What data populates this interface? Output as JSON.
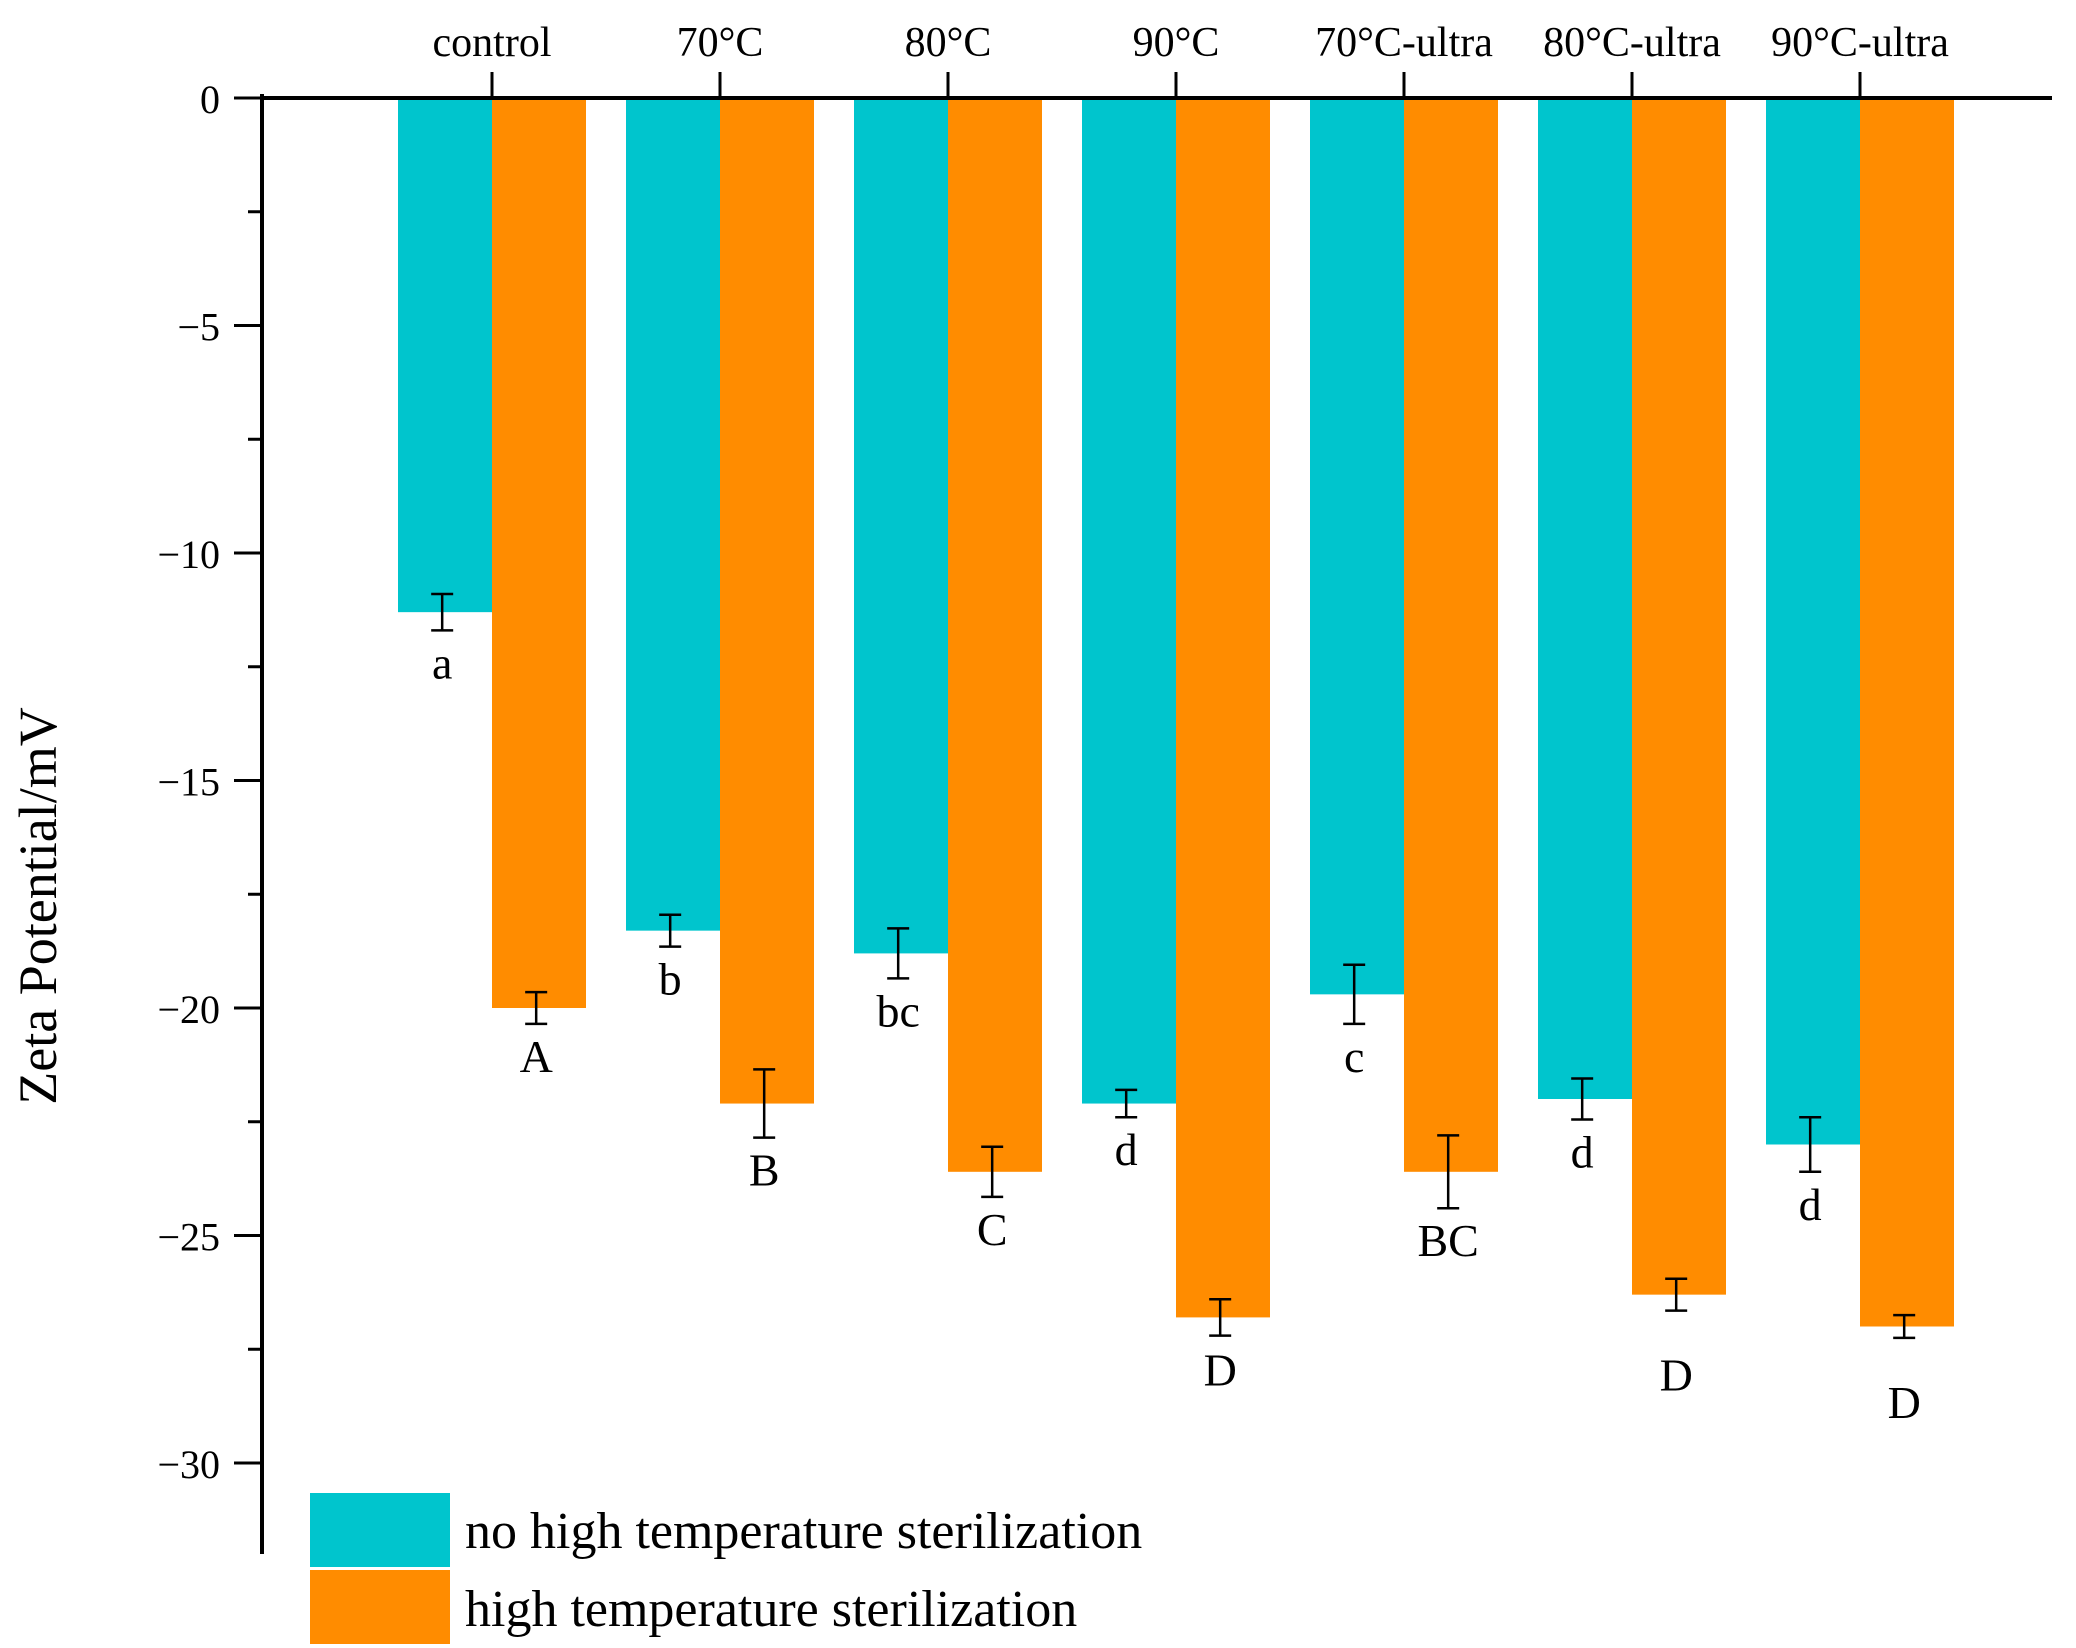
{
  "chart_data": {
    "type": "bar",
    "ylabel": "Zeta Potential/mV",
    "xlabel": "",
    "ylim": [
      -32,
      0
    ],
    "yticks": [
      0,
      -5,
      -10,
      -15,
      -20,
      -25,
      -30
    ],
    "ytick_labels": [
      "0",
      "−5",
      "−10",
      "−15",
      "−20",
      "−25",
      "−30"
    ],
    "categories": [
      "control",
      "70°C",
      "80°C",
      "90°C",
      "70°C-ultra",
      "80°C-ultra",
      "90°C-ultra"
    ],
    "series": [
      {
        "name": "no high temperature sterilization",
        "color": "#00C5CD",
        "values": [
          -11.3,
          -18.3,
          -18.8,
          -22.1,
          -19.7,
          -22.0,
          -23.0
        ],
        "errors": [
          0.4,
          0.35,
          0.55,
          0.3,
          0.65,
          0.45,
          0.6
        ],
        "labels": [
          "a",
          "b",
          "bc",
          "d",
          "c",
          "d",
          "d"
        ]
      },
      {
        "name": "high temperature sterilization",
        "color": "#FF8C00",
        "values": [
          -20.0,
          -22.1,
          -23.6,
          -26.8,
          -23.6,
          -26.3,
          -27.0
        ],
        "errors": [
          0.35,
          0.75,
          0.55,
          0.4,
          0.8,
          0.35,
          0.25
        ],
        "labels": [
          "A",
          "B",
          "C",
          "D",
          "BC",
          "D",
          "D"
        ]
      }
    ],
    "legend_position": "bottom-left",
    "grid": false
  }
}
